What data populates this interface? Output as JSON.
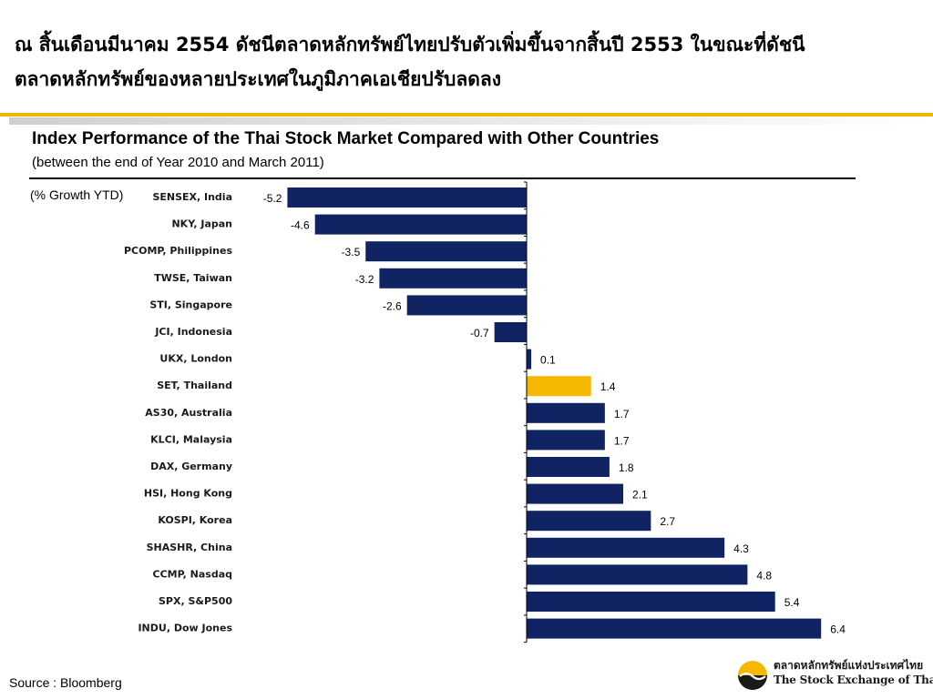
{
  "header": {
    "text": "ณ สิ้นเดือนมีนาคม 2554 ดัชนีตลาดหลักทรัพย์ไทยปรับตัวเพิ่มขึ้นจากสิ้นปี 2553 ในขณะที่ดัชนีตลาดหลักทรัพย์ของหลายประเทศในภูมิภาคเอเชียปรับลดลง"
  },
  "colors": {
    "accent_gold": "#f0b400",
    "bar_navy": "#102363",
    "highlight_bar": "#f5b800"
  },
  "chart_data": {
    "type": "bar",
    "orientation": "horizontal",
    "title": "Index Performance of the Thai Stock Market Compared with Other Countries",
    "subtitle": "(between the end of Year 2010 and March 2011)",
    "unit_label": "(% Growth YTD)",
    "categories": [
      "SENSEX, India",
      "NKY, Japan",
      "PCOMP, Philippines",
      "TWSE, Taiwan",
      "STI, Singapore",
      "JCI, Indonesia",
      "UKX, London",
      "SET, Thailand",
      "AS30, Australia",
      "KLCI, Malaysia",
      "DAX, Germany",
      "HSI, Hong Kong",
      "KOSPI, Korea",
      "SHASHR, China",
      "CCMP, Nasdaq",
      "SPX, S&P500",
      "INDU, Dow Jones"
    ],
    "values": [
      -5.2,
      -4.6,
      -3.5,
      -3.2,
      -2.6,
      -0.7,
      0.1,
      1.4,
      1.7,
      1.7,
      1.8,
      2.1,
      2.7,
      4.3,
      4.8,
      5.4,
      6.4
    ],
    "labels": [
      "-5.2",
      "-4.6",
      "-3.5",
      "-3.2",
      "-2.6",
      "-0.7",
      "0.1",
      "1.4",
      "1.7",
      "1.7",
      "1.8",
      "2.1",
      "2.7",
      "4.3",
      "4.8",
      "5.4",
      "6.4"
    ],
    "highlight": "SET, Thailand",
    "xlim": [
      -5.2,
      6.4
    ],
    "grid": false,
    "legend": "none"
  },
  "footer": {
    "source": "Source : Bloomberg",
    "logo_th": "ตลาดหลักทรัพย์แห่งประเทศไทย",
    "logo_en": "The Stock Exchange of Thailand"
  }
}
